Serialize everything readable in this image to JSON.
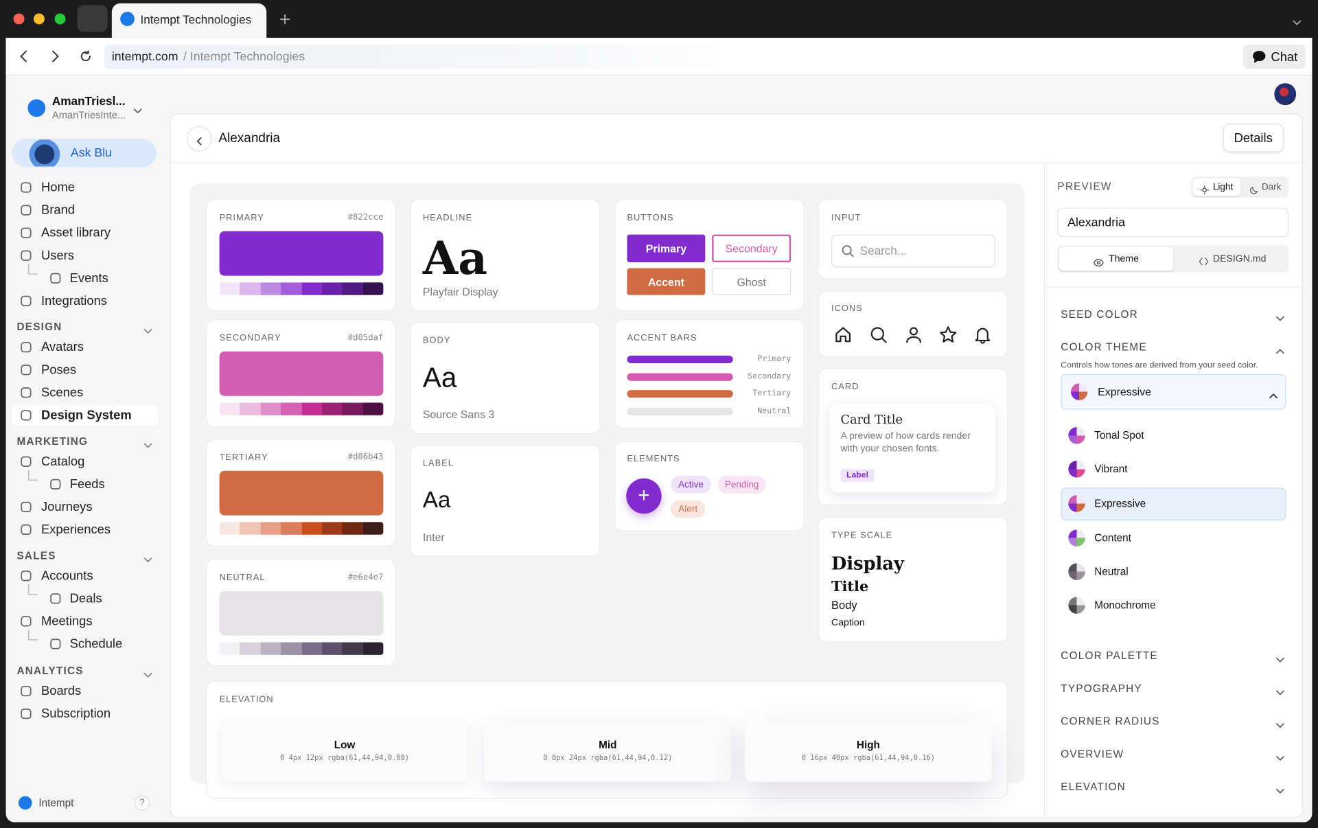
{
  "browser": {
    "tab_title": "Intempt Technologies",
    "url_host": "intempt.com",
    "url_rest": "/ Intempt Technologies",
    "chat_button": "Chat"
  },
  "sidebar": {
    "workspace_name": "AmanTriesl...",
    "workspace_sub": "AmanTriesInte...",
    "ask_button": "Ask Blu",
    "items": [
      {
        "label": "Home"
      },
      {
        "label": "Brand"
      },
      {
        "label": "Asset library"
      },
      {
        "label": "Users"
      },
      {
        "label": "Events",
        "indent": true
      },
      {
        "label": "Integrations"
      }
    ],
    "sections": [
      {
        "title": "DESIGN",
        "items": [
          {
            "label": "Avatars"
          },
          {
            "label": "Poses"
          },
          {
            "label": "Scenes"
          },
          {
            "label": "Design System",
            "active": true
          }
        ]
      },
      {
        "title": "MARKETING",
        "items": [
          {
            "label": "Catalog"
          },
          {
            "label": "Feeds",
            "indent": true
          },
          {
            "label": "Journeys"
          },
          {
            "label": "Experiences"
          }
        ]
      },
      {
        "title": "SALES",
        "items": [
          {
            "label": "Accounts"
          },
          {
            "label": "Deals",
            "indent": true
          },
          {
            "label": "Meetings"
          },
          {
            "label": "Schedule",
            "indent": true
          }
        ]
      },
      {
        "title": "ANALYTICS",
        "items": [
          {
            "label": "Boards"
          },
          {
            "label": "Subscription"
          }
        ]
      }
    ],
    "footer_label": "Intempt",
    "help": "?"
  },
  "header": {
    "title": "Alexandria",
    "details_button": "Details"
  },
  "palettes": [
    {
      "label": "PRIMARY",
      "hex": "#822cce",
      "tones": [
        "#efe6f7",
        "#dcb8ef",
        "#bd8be2",
        "#a45ddb",
        "#822cce",
        "#6a22aa",
        "#521a84",
        "#36104f"
      ]
    },
    {
      "label": "SECONDARY",
      "hex": "#d05daf",
      "tones": [
        "#f8e5f2",
        "#ecbcdf",
        "#e18fcb",
        "#d662b4",
        "#c22e92",
        "#9c2276",
        "#781a5b",
        "#4e1040"
      ]
    },
    {
      "label": "TERTIARY",
      "hex": "#d06b43",
      "tones": [
        "#f7e8e3",
        "#efc6b6",
        "#e4a08a",
        "#dc7b5e",
        "#c9501e",
        "#9c3a1a",
        "#6f2813",
        "#3e1e1a"
      ]
    },
    {
      "label": "NEUTRAL",
      "hex": "#e6e4e7",
      "tones": [
        "#f2f1f3",
        "#d8d2de",
        "#bbb3c3",
        "#9d92a7",
        "#7d6c8a",
        "#5e5169",
        "#433a4c",
        "#2a2430"
      ]
    }
  ],
  "typography": [
    {
      "label": "HEADLINE",
      "sample": "Aa",
      "font": "Playfair Display"
    },
    {
      "label": "BODY",
      "sample": "Aa",
      "font": "Source Sans 3"
    },
    {
      "label": "LABEL",
      "sample": "Aa",
      "font": "Inter"
    }
  ],
  "buttons": {
    "label": "BUTTONS",
    "items": [
      "Primary",
      "Secondary",
      "Accent",
      "Ghost"
    ]
  },
  "accent_bars": {
    "label": "ACCENT BARS",
    "items": [
      {
        "name": "Primary",
        "color": "#822cce"
      },
      {
        "name": "Secondary",
        "color": "#d05daf"
      },
      {
        "name": "Tertiary",
        "color": "#d06b43"
      },
      {
        "name": "Neutral",
        "color": "#e6e4e7"
      }
    ]
  },
  "elements": {
    "label": "ELEMENTS",
    "fab": "+",
    "chips": [
      "Active",
      "Pending",
      "Alert"
    ]
  },
  "input": {
    "label": "INPUT",
    "placeholder": "Search..."
  },
  "icons": {
    "label": "ICONS"
  },
  "card": {
    "label": "CARD",
    "title": "Card Title",
    "description": "A preview of how cards render with your chosen fonts.",
    "chip": "Label"
  },
  "type_scale": {
    "label": "TYPE SCALE",
    "items": [
      "Display",
      "Title",
      "Body",
      "Caption"
    ]
  },
  "elevation": {
    "label": "ELEVATION",
    "levels": [
      {
        "name": "Low",
        "shadow": "0 4px 12px rgba(61,44,94,0.08)"
      },
      {
        "name": "Mid",
        "shadow": "0 8px 24px rgba(61,44,94,0.12)"
      },
      {
        "name": "High",
        "shadow": "0 16px 40px rgba(61,44,94,0.16)"
      }
    ]
  },
  "panel": {
    "preview_label": "PREVIEW",
    "modes": [
      "Light",
      "Dark"
    ],
    "name_value": "Alexandria",
    "tabs": [
      "Theme",
      "DESIGN.md"
    ],
    "sections_top": [
      "SEED COLOR"
    ],
    "color_theme": {
      "title": "COLOR THEME",
      "hint": "Controls how tones are derived from your seed color.",
      "selected": "Expressive",
      "options": [
        {
          "name": "Tonal Spot",
          "colors": [
            "#f0e6f7",
            "#d05daf",
            "#a560d6",
            "#822cce"
          ]
        },
        {
          "name": "Vibrant",
          "colors": [
            "#f3e8f9",
            "#e04a8f",
            "#822cce",
            "#6a22aa"
          ]
        },
        {
          "name": "Expressive",
          "colors": [
            "#f4e8f8",
            "#d06b43",
            "#822cce",
            "#d05daf"
          ]
        },
        {
          "name": "Content",
          "colors": [
            "#f0e8f5",
            "#7fc36b",
            "#b180d8",
            "#822cce"
          ]
        },
        {
          "name": "Neutral",
          "colors": [
            "#e6e4e7",
            "#9a929e",
            "#6d6670",
            "#55505a"
          ]
        },
        {
          "name": "Monochrome",
          "colors": [
            "#eeeeee",
            "#999999",
            "#444444",
            "#777777"
          ]
        }
      ]
    },
    "sections_bottom": [
      "COLOR PALETTE",
      "TYPOGRAPHY",
      "CORNER RADIUS",
      "OVERVIEW",
      "ELEVATION"
    ]
  }
}
